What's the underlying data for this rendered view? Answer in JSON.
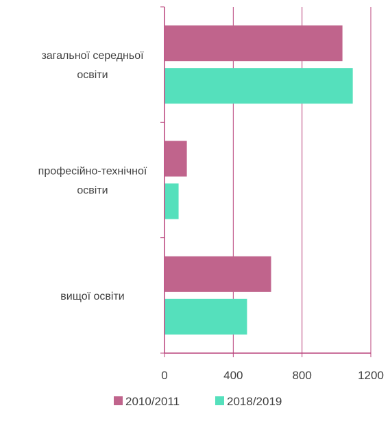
{
  "chart_data": {
    "type": "bar",
    "orientation": "horizontal",
    "categories": [
      [
        "загальної середньої",
        "освіти"
      ],
      [
        "професійно-технічної",
        "освіти"
      ],
      [
        "вищої освіти"
      ]
    ],
    "series": [
      {
        "name": "2010/2011",
        "color": "#c0648c",
        "values": [
          1035,
          130,
          620
        ]
      },
      {
        "name": "2018/2019",
        "color": "#55e0bc",
        "values": [
          1095,
          82,
          480
        ]
      }
    ],
    "xlim": [
      0,
      1200
    ],
    "xticks": [
      "0",
      "400",
      "800",
      "1200"
    ],
    "grid": true,
    "grid_color": "#b8407a",
    "legend_position": "bottom"
  }
}
